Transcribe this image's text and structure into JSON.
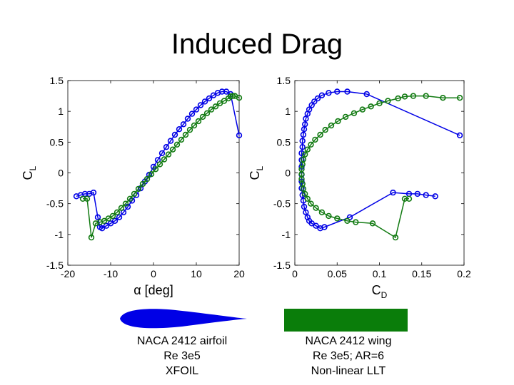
{
  "slide": {
    "title": "Induced Drag"
  },
  "colors": {
    "airfoil": "#0000e6",
    "wing": "#117a11"
  },
  "captions": {
    "left": {
      "line1": "NACA 2412 airfoil",
      "line2": "Re 3e5",
      "line3": "XFOIL"
    },
    "right": {
      "line1": "NACA 2412 wing",
      "line2": "Re 3e5; AR=6",
      "line3": "Non-linear LLT"
    }
  },
  "chart_data": [
    {
      "type": "line",
      "xlabel": "α [deg]",
      "ylabel": "C_L",
      "xlim": [
        -20,
        20
      ],
      "ylim": [
        -1.5,
        1.5
      ],
      "xticks": [
        -20,
        -10,
        0,
        10,
        20
      ],
      "yticks": [
        -1.5,
        -1,
        -0.5,
        0,
        0.5,
        1,
        1.5
      ],
      "series": [
        {
          "name": "NACA 2412 airfoil",
          "color": "#0000e6",
          "x": [
            -18,
            -17,
            -16,
            -15,
            -14,
            -13,
            -12.5,
            -12,
            -11,
            -10,
            -9,
            -8,
            -7,
            -6,
            -5,
            -4,
            -3,
            -2,
            -1,
            0,
            1,
            2,
            3,
            4,
            5,
            6,
            7,
            8,
            9,
            10,
            11,
            12,
            13,
            14,
            15,
            16,
            17,
            18,
            20
          ],
          "y": [
            -0.38,
            -0.36,
            -0.34,
            -0.34,
            -0.32,
            -0.72,
            -0.88,
            -0.9,
            -0.86,
            -0.82,
            -0.78,
            -0.72,
            -0.64,
            -0.55,
            -0.45,
            -0.36,
            -0.25,
            -0.14,
            -0.03,
            0.1,
            0.21,
            0.32,
            0.42,
            0.52,
            0.62,
            0.71,
            0.79,
            0.88,
            0.96,
            1.03,
            1.1,
            1.16,
            1.21,
            1.26,
            1.3,
            1.32,
            1.32,
            1.28,
            0.61
          ]
        },
        {
          "name": "NACA 2412 wing",
          "color": "#117a11",
          "x": [
            -16.5,
            -15.5,
            -14.5,
            -13.5,
            -12.5,
            -11.5,
            -10.5,
            -9.5,
            -8.5,
            -7.5,
            -6.5,
            -5.5,
            -4.5,
            -3.5,
            -2.5,
            -1.5,
            -0.5,
            0.5,
            1.5,
            2.5,
            3.5,
            4.5,
            5.5,
            6.5,
            7.5,
            8.5,
            9.5,
            10.5,
            11.5,
            12.5,
            13.5,
            14.5,
            15.5,
            16.5,
            17.5,
            18,
            18.5,
            19,
            20
          ],
          "y": [
            -0.42,
            -0.42,
            -1.05,
            -0.82,
            -0.8,
            -0.78,
            -0.74,
            -0.7,
            -0.64,
            -0.57,
            -0.5,
            -0.42,
            -0.34,
            -0.26,
            -0.18,
            -0.1,
            -0.02,
            0.06,
            0.14,
            0.22,
            0.3,
            0.38,
            0.46,
            0.54,
            0.62,
            0.7,
            0.77,
            0.84,
            0.91,
            0.97,
            1.03,
            1.08,
            1.13,
            1.17,
            1.21,
            1.24,
            1.25,
            1.25,
            1.22
          ]
        }
      ]
    },
    {
      "type": "line",
      "xlabel": "C_D",
      "ylabel": "C_L",
      "xlim": [
        0,
        0.2
      ],
      "ylim": [
        -1.5,
        1.5
      ],
      "xticks": [
        0,
        0.05,
        0.1,
        0.15,
        0.2
      ],
      "yticks": [
        -1.5,
        -1,
        -0.5,
        0,
        0.5,
        1,
        1.5
      ],
      "series": [
        {
          "name": "NACA 2412 airfoil",
          "color": "#0000e6",
          "x": [
            0.166,
            0.155,
            0.145,
            0.135,
            0.116,
            0.065,
            0.035,
            0.03,
            0.025,
            0.02,
            0.017,
            0.015,
            0.013,
            0.011,
            0.01,
            0.009,
            0.008,
            0.008,
            0.008,
            0.008,
            0.008,
            0.008,
            0.009,
            0.009,
            0.01,
            0.011,
            0.012,
            0.013,
            0.015,
            0.017,
            0.02,
            0.023,
            0.027,
            0.032,
            0.04,
            0.05,
            0.062,
            0.085,
            0.195
          ],
          "y": [
            -0.38,
            -0.36,
            -0.34,
            -0.34,
            -0.32,
            -0.72,
            -0.88,
            -0.9,
            -0.86,
            -0.82,
            -0.78,
            -0.72,
            -0.64,
            -0.55,
            -0.45,
            -0.36,
            -0.25,
            -0.14,
            -0.03,
            0.1,
            0.21,
            0.32,
            0.42,
            0.52,
            0.62,
            0.71,
            0.79,
            0.88,
            0.96,
            1.03,
            1.1,
            1.16,
            1.21,
            1.26,
            1.3,
            1.32,
            1.32,
            1.28,
            0.61
          ]
        },
        {
          "name": "NACA 2412 wing",
          "color": "#117a11",
          "x": [
            0.135,
            0.13,
            0.119,
            0.092,
            0.072,
            0.062,
            0.05,
            0.04,
            0.032,
            0.025,
            0.019,
            0.015,
            0.012,
            0.01,
            0.009,
            0.008,
            0.008,
            0.008,
            0.009,
            0.01,
            0.012,
            0.015,
            0.019,
            0.024,
            0.03,
            0.036,
            0.043,
            0.051,
            0.06,
            0.07,
            0.08,
            0.09,
            0.1,
            0.11,
            0.122,
            0.13,
            0.14,
            0.155,
            0.175,
            0.195
          ],
          "y": [
            -0.42,
            -0.42,
            -1.05,
            -0.82,
            -0.8,
            -0.78,
            -0.74,
            -0.7,
            -0.64,
            -0.57,
            -0.5,
            -0.42,
            -0.34,
            -0.26,
            -0.18,
            -0.1,
            -0.02,
            0.06,
            0.14,
            0.22,
            0.3,
            0.38,
            0.46,
            0.54,
            0.62,
            0.7,
            0.77,
            0.84,
            0.91,
            0.97,
            1.03,
            1.08,
            1.13,
            1.17,
            1.21,
            1.24,
            1.25,
            1.25,
            1.22,
            1.22
          ]
        }
      ]
    }
  ]
}
